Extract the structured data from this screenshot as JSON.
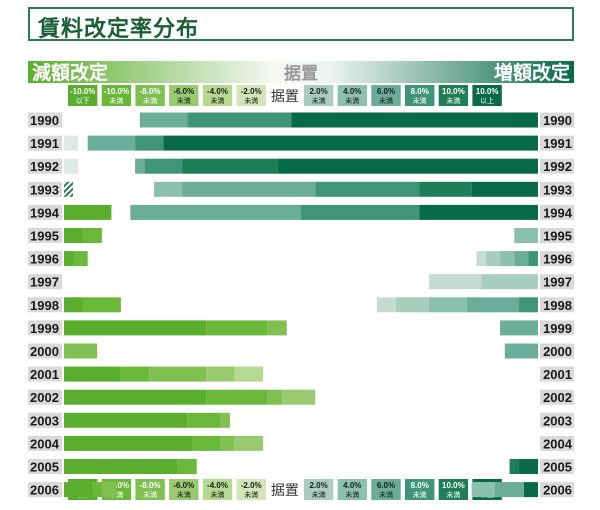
{
  "colors": {
    "dec": [
      "#5aae2e",
      "#6ab83a",
      "#80c052",
      "#98cb70",
      "#b4d98f",
      "#d0e6b8"
    ],
    "inc": [
      "#c5dcd2",
      "#a9cdbf",
      "#8bbfae",
      "#6aae9a",
      "#3e9577",
      "#1e7e58",
      "#086a48"
    ],
    "freeze": "#dfe8e2",
    "year_bg": "#d9d9d9"
  },
  "chart_data": {
    "type": "bar",
    "title": "賃料改定率分布",
    "left_header": "減額改定",
    "center_header": "据置",
    "right_header": "増額改定",
    "legend_labels": [
      {
        "v": "-10.0%",
        "s": "以下"
      },
      {
        "v": "-10.0%",
        "s": "未満"
      },
      {
        "v": "-8.0%",
        "s": "未満"
      },
      {
        "v": "-6.0%",
        "s": "未満"
      },
      {
        "v": "-4.0%",
        "s": "未満"
      },
      {
        "v": "-2.0%",
        "s": "未満"
      },
      {
        "v": "据置",
        "s": ""
      },
      {
        "v": "2.0%",
        "s": "未満"
      },
      {
        "v": "4.0%",
        "s": "未満"
      },
      {
        "v": "6.0%",
        "s": "未満"
      },
      {
        "v": "8.0%",
        "s": "未満"
      },
      {
        "v": "10.0%",
        "s": "未満"
      },
      {
        "v": "10.0%",
        "s": "以上"
      }
    ],
    "years": [
      "1990",
      "1991",
      "1992",
      "1993",
      "1994",
      "1995",
      "1996",
      "1997",
      "1998",
      "1999",
      "2000",
      "2001",
      "2002",
      "2003",
      "2004",
      "2005",
      "2006"
    ],
    "decrease_pct": [
      [
        0,
        0,
        0,
        0,
        0,
        0
      ],
      [
        0,
        0,
        0,
        0,
        0,
        0
      ],
      [
        0,
        0,
        0,
        0,
        0,
        0
      ],
      [
        0,
        0,
        0,
        0,
        0,
        0
      ],
      [
        10,
        0,
        0,
        0,
        0,
        0
      ],
      [
        4,
        4,
        0,
        0,
        0,
        0
      ],
      [
        2,
        3,
        0,
        0,
        0,
        0
      ],
      [
        0,
        0,
        0,
        0,
        0,
        0
      ],
      [
        4,
        8,
        0,
        0,
        0,
        0
      ],
      [
        30,
        13,
        4,
        0,
        0,
        0
      ],
      [
        0,
        0,
        7,
        0,
        0,
        0
      ],
      [
        12,
        6,
        12,
        6,
        6,
        0
      ],
      [
        30,
        13,
        3,
        7,
        0,
        0
      ],
      [
        26,
        7,
        2,
        0,
        0,
        0
      ],
      [
        27,
        6,
        3,
        6,
        0,
        0
      ],
      [
        24,
        4,
        0,
        0,
        0,
        0
      ],
      [
        6,
        2,
        3,
        0,
        0,
        0
      ]
    ],
    "freeze_pct": [
      0,
      3,
      3,
      0,
      0,
      0,
      0,
      0,
      0,
      0,
      0,
      0,
      0,
      0,
      0,
      0,
      0
    ],
    "increase_pct": [
      [
        0,
        0,
        0,
        10,
        22,
        0,
        52
      ],
      [
        0,
        0,
        0,
        10,
        6,
        0,
        79
      ],
      [
        0,
        0,
        0,
        2,
        8,
        20,
        55
      ],
      [
        0,
        0,
        6,
        28,
        22,
        11,
        14
      ],
      [
        0,
        0,
        0,
        36,
        25,
        0,
        25
      ],
      [
        0,
        0,
        5,
        0,
        0,
        0,
        0
      ],
      [
        2,
        3,
        3,
        3,
        2,
        0,
        0
      ],
      [
        11,
        12,
        0,
        0,
        0,
        0,
        0
      ],
      [
        4,
        7,
        8,
        11,
        4,
        0,
        0
      ],
      [
        0,
        0,
        0,
        8,
        0,
        0,
        0
      ],
      [
        0,
        0,
        0,
        7,
        0,
        0,
        0
      ],
      [
        0,
        0,
        0,
        0,
        0,
        0,
        0
      ],
      [
        0,
        0,
        0,
        0,
        0,
        0,
        0
      ],
      [
        0,
        0,
        0,
        0,
        0,
        0,
        0
      ],
      [
        0,
        0,
        0,
        0,
        0,
        0,
        0
      ],
      [
        0,
        0,
        0,
        0,
        0,
        2,
        4
      ],
      [
        0,
        0,
        5,
        6,
        0,
        0,
        3
      ]
    ]
  }
}
